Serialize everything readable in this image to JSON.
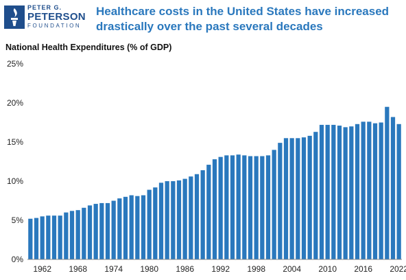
{
  "logo": {
    "line1": "PETER G.",
    "line2": "PETERSON",
    "line3": "FOUNDATION"
  },
  "headline": "Healthcare costs in the United States have increased drastically over the past several decades",
  "chart_data": {
    "type": "bar",
    "title": "",
    "ylabel": "National Health Expenditures (% of GDP)",
    "xlabel": "",
    "ylim": [
      0,
      25
    ],
    "yticks": [
      0,
      5,
      10,
      15,
      20,
      25
    ],
    "ytick_labels": [
      "0%",
      "5%",
      "10%",
      "15%",
      "20%",
      "25%"
    ],
    "xtick_labels": [
      "1962",
      "1968",
      "1974",
      "1980",
      "1986",
      "1992",
      "1998",
      "2004",
      "2010",
      "2016",
      "2022"
    ],
    "grid": false,
    "bar_color": "#2a78bd",
    "categories": [
      "1960",
      "1961",
      "1962",
      "1963",
      "1964",
      "1965",
      "1966",
      "1967",
      "1968",
      "1969",
      "1970",
      "1971",
      "1972",
      "1973",
      "1974",
      "1975",
      "1976",
      "1977",
      "1978",
      "1979",
      "1980",
      "1981",
      "1982",
      "1983",
      "1984",
      "1985",
      "1986",
      "1987",
      "1988",
      "1989",
      "1990",
      "1991",
      "1992",
      "1993",
      "1994",
      "1995",
      "1996",
      "1997",
      "1998",
      "1999",
      "2000",
      "2001",
      "2002",
      "2003",
      "2004",
      "2005",
      "2006",
      "2007",
      "2008",
      "2009",
      "2010",
      "2011",
      "2012",
      "2013",
      "2014",
      "2015",
      "2016",
      "2017",
      "2018",
      "2019",
      "2020",
      "2021",
      "2022"
    ],
    "values": [
      5.2,
      5.3,
      5.5,
      5.6,
      5.6,
      5.6,
      6.0,
      6.2,
      6.3,
      6.6,
      6.9,
      7.1,
      7.2,
      7.2,
      7.5,
      7.8,
      8.0,
      8.2,
      8.1,
      8.2,
      8.9,
      9.2,
      9.8,
      10.0,
      10.0,
      10.1,
      10.3,
      10.6,
      10.9,
      11.4,
      12.1,
      12.8,
      13.1,
      13.3,
      13.3,
      13.4,
      13.3,
      13.2,
      13.2,
      13.2,
      13.3,
      14.0,
      14.9,
      15.5,
      15.5,
      15.5,
      15.6,
      15.8,
      16.3,
      17.2,
      17.2,
      17.2,
      17.1,
      16.9,
      17.0,
      17.3,
      17.6,
      17.6,
      17.4,
      17.5,
      19.5,
      18.2,
      17.3
    ]
  }
}
